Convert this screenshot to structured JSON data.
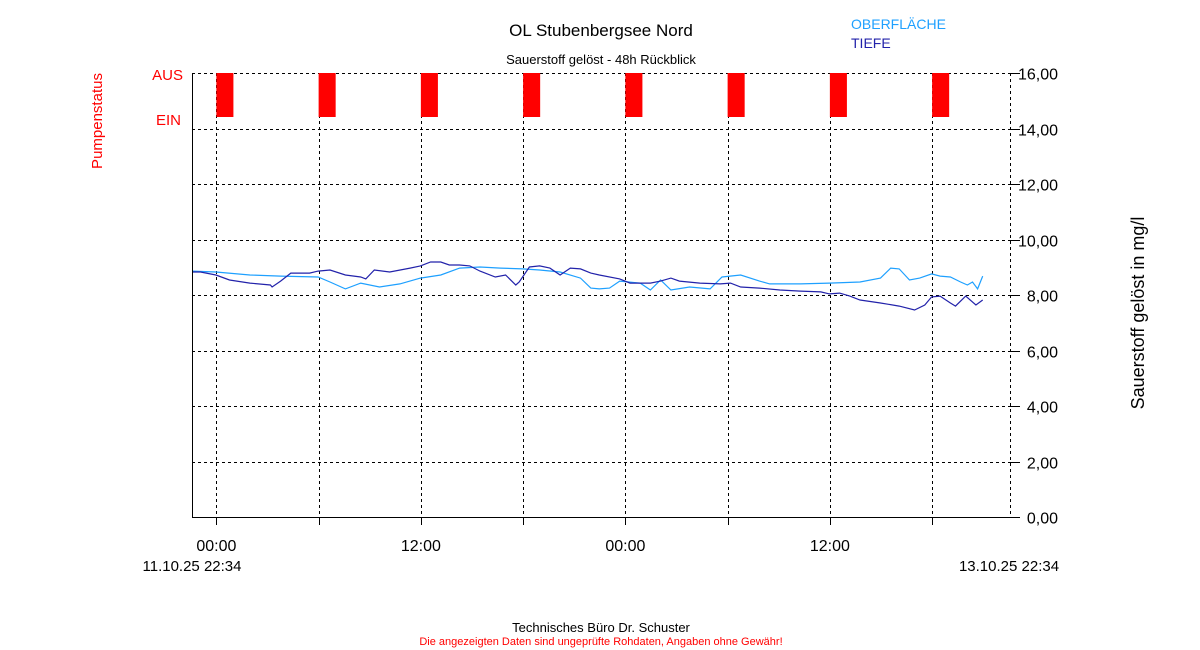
{
  "chart_data": {
    "type": "line",
    "title": "OL Stubenbergsee Nord",
    "subtitle": "Sauerstoff gelöst - 48h Rückblick",
    "ylabel": "Sauerstoff gelöst in mg/l",
    "ylabel_left": "Pumpenstatus",
    "pump_labels": [
      "AUS",
      "EIN"
    ],
    "ylim": [
      0,
      16
    ],
    "yticks": [
      "0,00",
      "2,00",
      "4,00",
      "6,00",
      "8,00",
      "10,00",
      "12,00",
      "14,00",
      "16,00"
    ],
    "x_range_hours": [
      0,
      48
    ],
    "x_start_label": "11.10.25 22:34",
    "x_end_label": "13.10.25 22:34",
    "xticks": [
      {
        "t": 1.43,
        "label": "00:00"
      },
      {
        "t": 13.43,
        "label": "12:00"
      },
      {
        "t": 25.43,
        "label": "00:00"
      },
      {
        "t": 37.43,
        "label": "12:00"
      }
    ],
    "grid_hours": [
      1.43,
      7.43,
      13.43,
      19.43,
      25.43,
      31.43,
      37.43,
      43.43
    ],
    "pump_aus_hours": [
      1.43,
      7.43,
      13.43,
      19.43,
      25.43,
      31.43,
      37.43,
      43.43
    ],
    "pump_aus_duration_hours": 1,
    "grid": true,
    "legend_placement": "top-right",
    "series": [
      {
        "name": "OBERFLÄCHE",
        "color": "#1ea0ff",
        "points": [
          [
            0,
            8.86
          ],
          [
            1.4,
            8.83
          ],
          [
            3.4,
            8.72
          ],
          [
            5.2,
            8.68
          ],
          [
            7.4,
            8.65
          ],
          [
            8.1,
            8.47
          ],
          [
            9.0,
            8.22
          ],
          [
            9.9,
            8.43
          ],
          [
            11.0,
            8.29
          ],
          [
            12.2,
            8.4
          ],
          [
            13.4,
            8.61
          ],
          [
            14.6,
            8.72
          ],
          [
            15.7,
            8.97
          ],
          [
            16.9,
            9.01
          ],
          [
            18.1,
            8.97
          ],
          [
            19.4,
            8.94
          ],
          [
            20.4,
            8.9
          ],
          [
            21.6,
            8.83
          ],
          [
            22.8,
            8.61
          ],
          [
            23.4,
            8.25
          ],
          [
            23.9,
            8.22
          ],
          [
            24.5,
            8.25
          ],
          [
            25.1,
            8.5
          ],
          [
            26.3,
            8.43
          ],
          [
            26.9,
            8.18
          ],
          [
            27.5,
            8.54
          ],
          [
            28.1,
            8.18
          ],
          [
            29.2,
            8.29
          ],
          [
            30.4,
            8.22
          ],
          [
            31.1,
            8.65
          ],
          [
            32.2,
            8.72
          ],
          [
            33.3,
            8.5
          ],
          [
            33.9,
            8.4
          ],
          [
            35.7,
            8.4
          ],
          [
            37.4,
            8.43
          ],
          [
            39.2,
            8.47
          ],
          [
            40.4,
            8.61
          ],
          [
            41.0,
            8.97
          ],
          [
            41.5,
            8.94
          ],
          [
            42.1,
            8.54
          ],
          [
            42.7,
            8.61
          ],
          [
            43.4,
            8.76
          ],
          [
            43.9,
            8.68
          ],
          [
            44.5,
            8.65
          ],
          [
            45.1,
            8.47
          ],
          [
            45.5,
            8.36
          ],
          [
            45.8,
            8.47
          ],
          [
            46.1,
            8.22
          ],
          [
            46.4,
            8.68
          ]
        ]
      },
      {
        "name": "TIEFE",
        "color": "#2222aa",
        "points": [
          [
            0,
            8.83
          ],
          [
            0.5,
            8.83
          ],
          [
            1.4,
            8.72
          ],
          [
            2.2,
            8.54
          ],
          [
            3.4,
            8.43
          ],
          [
            4.6,
            8.36
          ],
          [
            4.7,
            8.29
          ],
          [
            5.2,
            8.5
          ],
          [
            5.8,
            8.79
          ],
          [
            6.9,
            8.79
          ],
          [
            7.4,
            8.86
          ],
          [
            8.1,
            8.9
          ],
          [
            9.0,
            8.72
          ],
          [
            9.9,
            8.65
          ],
          [
            10.2,
            8.58
          ],
          [
            10.7,
            8.9
          ],
          [
            11.6,
            8.83
          ],
          [
            12.8,
            8.97
          ],
          [
            13.4,
            9.05
          ],
          [
            14.0,
            9.19
          ],
          [
            14.6,
            9.19
          ],
          [
            15.1,
            9.08
          ],
          [
            15.7,
            9.08
          ],
          [
            16.3,
            9.05
          ],
          [
            16.9,
            8.86
          ],
          [
            17.8,
            8.65
          ],
          [
            18.4,
            8.72
          ],
          [
            19.0,
            8.36
          ],
          [
            19.2,
            8.47
          ],
          [
            19.8,
            9.01
          ],
          [
            20.4,
            9.05
          ],
          [
            21.0,
            8.97
          ],
          [
            21.6,
            8.72
          ],
          [
            22.2,
            8.97
          ],
          [
            22.8,
            8.94
          ],
          [
            23.4,
            8.79
          ],
          [
            23.9,
            8.72
          ],
          [
            25.1,
            8.58
          ],
          [
            25.7,
            8.43
          ],
          [
            26.9,
            8.43
          ],
          [
            27.5,
            8.5
          ],
          [
            28.1,
            8.61
          ],
          [
            28.6,
            8.5
          ],
          [
            29.8,
            8.43
          ],
          [
            31.0,
            8.4
          ],
          [
            31.6,
            8.43
          ],
          [
            32.2,
            8.29
          ],
          [
            33.3,
            8.25
          ],
          [
            34.5,
            8.18
          ],
          [
            35.7,
            8.14
          ],
          [
            36.9,
            8.11
          ],
          [
            37.4,
            8.04
          ],
          [
            38.0,
            8.07
          ],
          [
            38.6,
            7.96
          ],
          [
            39.2,
            7.82
          ],
          [
            40.4,
            7.71
          ],
          [
            41.5,
            7.6
          ],
          [
            42.4,
            7.46
          ],
          [
            43.0,
            7.64
          ],
          [
            43.4,
            7.93
          ],
          [
            43.9,
            7.96
          ],
          [
            44.5,
            7.71
          ],
          [
            44.8,
            7.6
          ],
          [
            45.4,
            7.96
          ],
          [
            46.0,
            7.64
          ],
          [
            46.4,
            7.82
          ]
        ]
      }
    ]
  },
  "footer": {
    "company": "Technisches Büro Dr. Schuster",
    "disclaimer": "Die angezeigten Daten sind ungeprüfte Rohdaten, Angaben ohne Gewähr!"
  }
}
